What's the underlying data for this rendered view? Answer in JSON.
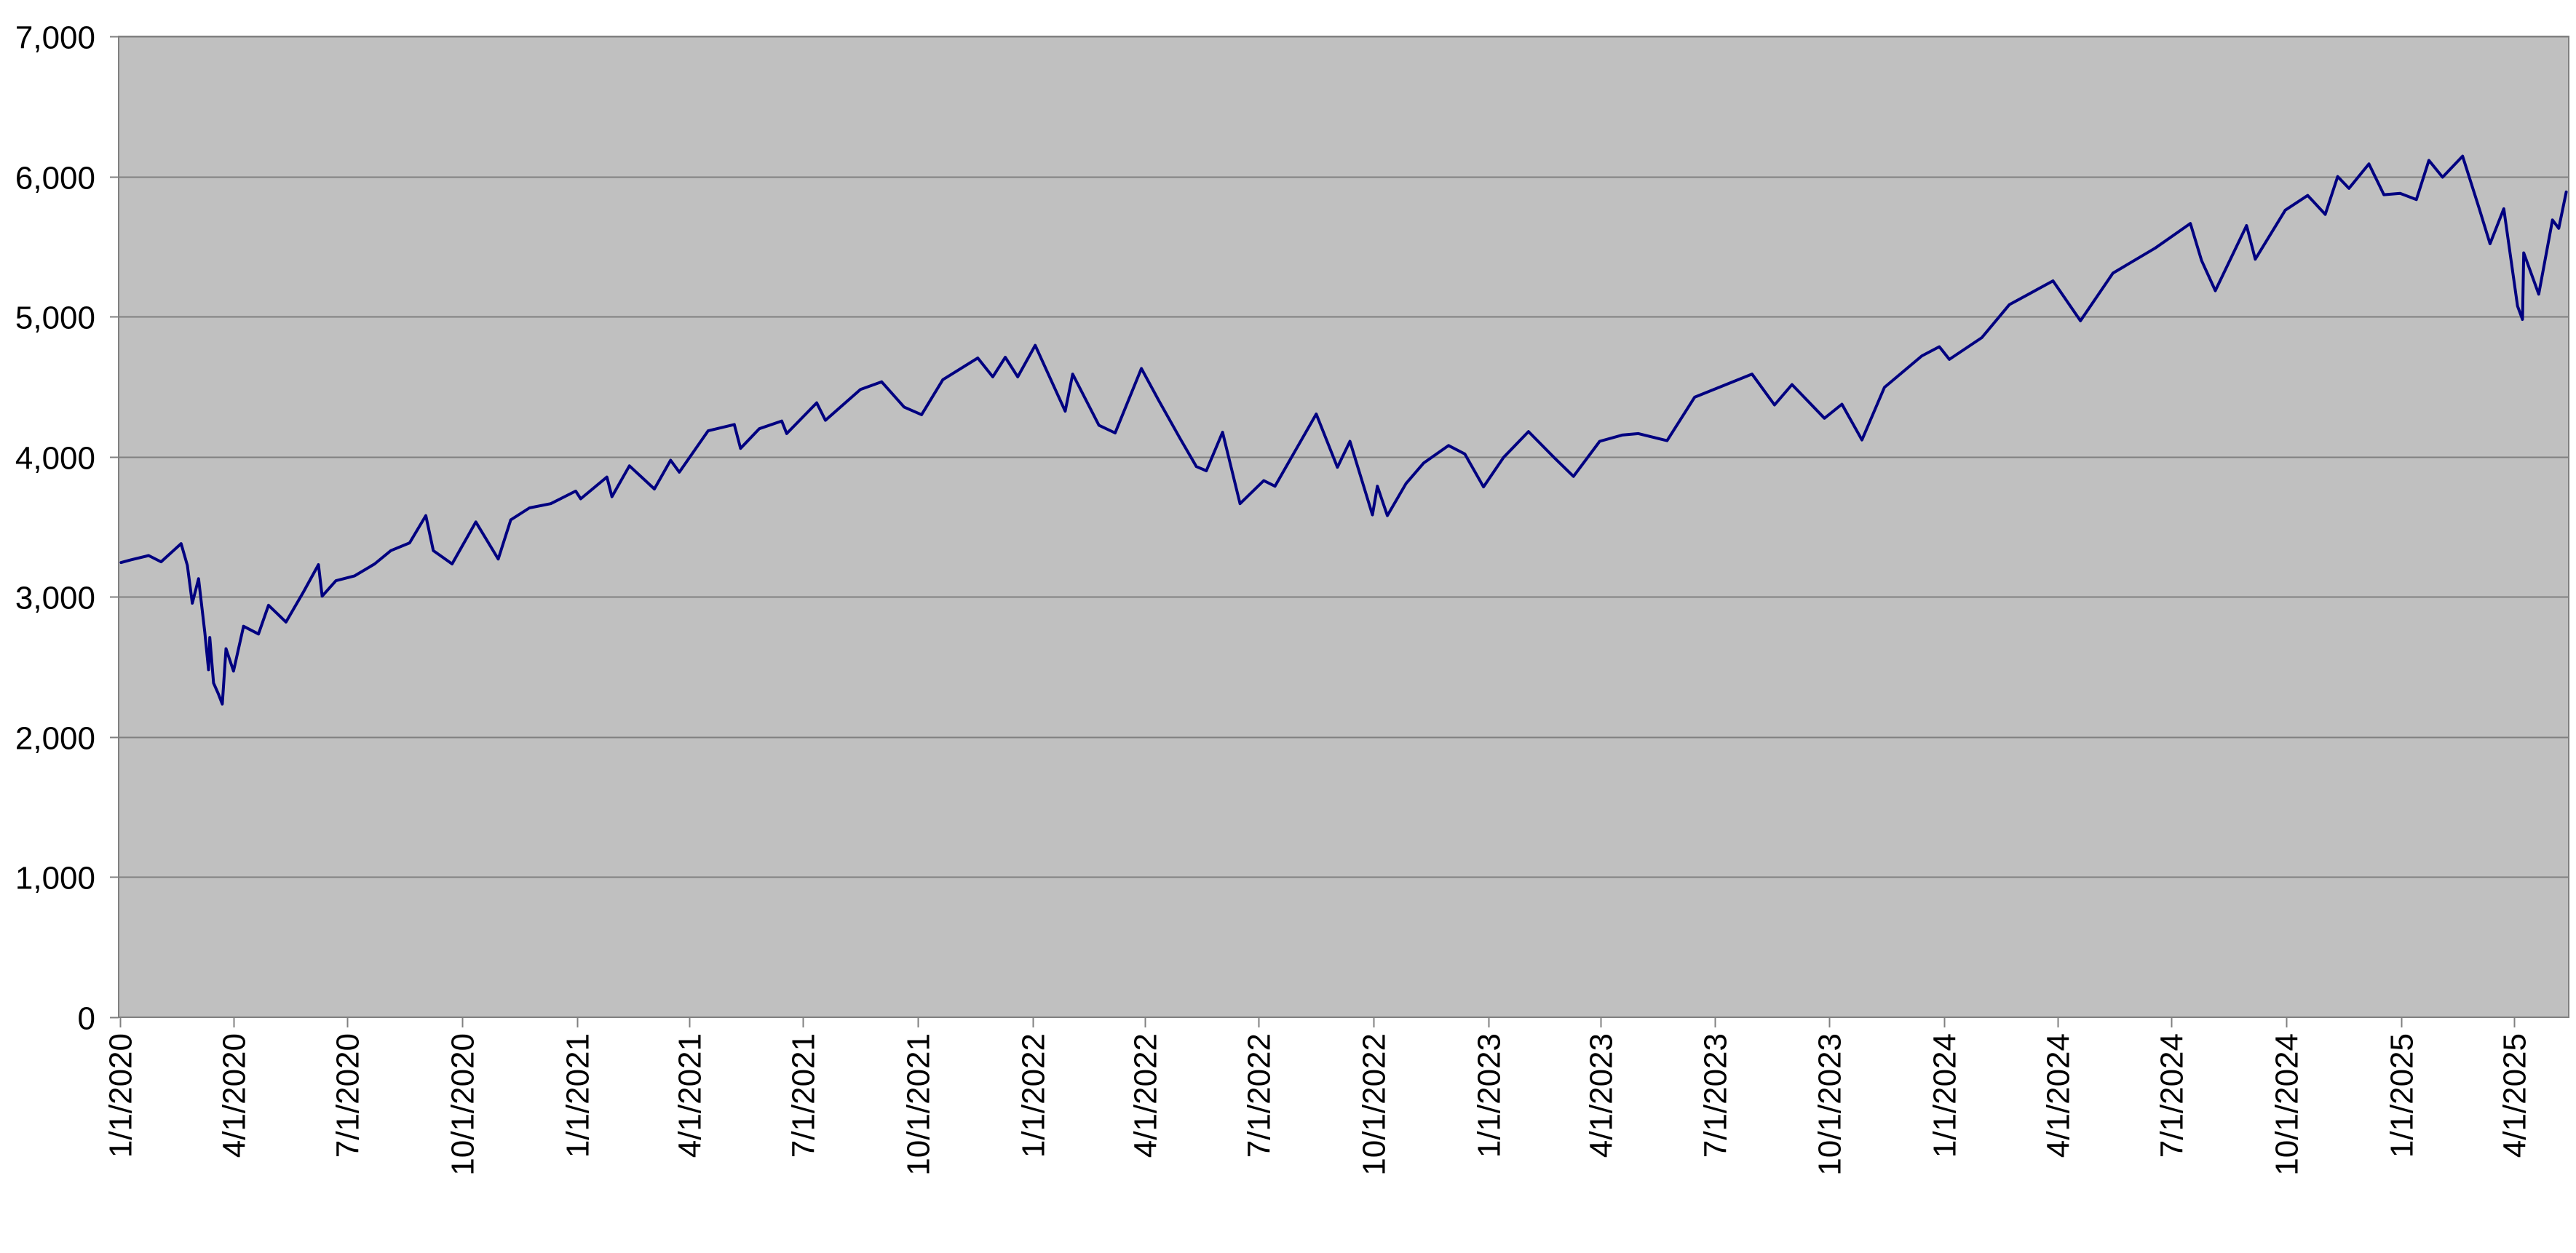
{
  "chart_data": {
    "type": "line",
    "title": "",
    "xlabel": "",
    "ylabel": "",
    "x_axis": {
      "start": "2019-12-31",
      "end": "2025-05-15",
      "tick_dates": [
        "2020-01-01",
        "2020-04-01",
        "2020-07-01",
        "2020-10-01",
        "2021-01-01",
        "2021-04-01",
        "2021-07-01",
        "2021-10-01",
        "2022-01-01",
        "2022-04-01",
        "2022-07-01",
        "2022-10-01",
        "2023-01-01",
        "2023-04-01",
        "2023-07-01",
        "2023-10-01",
        "2024-01-01",
        "2024-04-01",
        "2024-07-01",
        "2024-10-01",
        "2025-01-01",
        "2025-04-01"
      ],
      "tick_labels": [
        "1/1/2020",
        "4/1/2020",
        "7/1/2020",
        "10/1/2020",
        "1/1/2021",
        "4/1/2021",
        "7/1/2021",
        "10/1/2021",
        "1/1/2022",
        "4/1/2022",
        "7/1/2022",
        "10/1/2022",
        "1/1/2023",
        "4/1/2023",
        "7/1/2023",
        "10/1/2023",
        "1/1/2024",
        "4/1/2024",
        "7/1/2024",
        "10/1/2024",
        "1/1/2025",
        "4/1/2025"
      ]
    },
    "y_axis": {
      "ylim": [
        0,
        7000
      ],
      "ticks": [
        0,
        1000,
        2000,
        3000,
        4000,
        5000,
        6000,
        7000
      ],
      "tick_labels": [
        "0",
        "1,000",
        "2,000",
        "3,000",
        "4,000",
        "5,000",
        "6,000",
        "7,000"
      ]
    },
    "grid": {
      "horizontal": true,
      "vertical": false
    },
    "legend": "none",
    "colors": {
      "plot_background": "#c0c0c0",
      "line": "#000080",
      "gridline": "#808080",
      "axis": "#808080"
    },
    "series": [
      {
        "points": [
          [
            "2020-01-02",
            3245
          ],
          [
            "2020-01-10",
            3265
          ],
          [
            "2020-01-24",
            3295
          ],
          [
            "2020-02-03",
            3250
          ],
          [
            "2020-02-19",
            3380
          ],
          [
            "2020-02-24",
            3225
          ],
          [
            "2020-02-28",
            2955
          ],
          [
            "2020-03-04",
            3130
          ],
          [
            "2020-03-09",
            2745
          ],
          [
            "2020-03-12",
            2480
          ],
          [
            "2020-03-13",
            2710
          ],
          [
            "2020-03-16",
            2385
          ],
          [
            "2020-03-20",
            2305
          ],
          [
            "2020-03-23",
            2235
          ],
          [
            "2020-03-26",
            2630
          ],
          [
            "2020-04-01",
            2470
          ],
          [
            "2020-04-09",
            2790
          ],
          [
            "2020-04-21",
            2735
          ],
          [
            "2020-04-29",
            2940
          ],
          [
            "2020-05-13",
            2820
          ],
          [
            "2020-05-27",
            3035
          ],
          [
            "2020-06-08",
            3230
          ],
          [
            "2020-06-11",
            3005
          ],
          [
            "2020-06-22",
            3115
          ],
          [
            "2020-07-07",
            3150
          ],
          [
            "2020-07-23",
            3235
          ],
          [
            "2020-08-05",
            3330
          ],
          [
            "2020-08-20",
            3385
          ],
          [
            "2020-09-02",
            3580
          ],
          [
            "2020-09-08",
            3330
          ],
          [
            "2020-09-23",
            3235
          ],
          [
            "2020-10-12",
            3535
          ],
          [
            "2020-10-30",
            3270
          ],
          [
            "2020-11-09",
            3550
          ],
          [
            "2020-11-24",
            3635
          ],
          [
            "2020-12-11",
            3665
          ],
          [
            "2020-12-31",
            3755
          ],
          [
            "2021-01-04",
            3700
          ],
          [
            "2021-01-25",
            3855
          ],
          [
            "2021-01-29",
            3715
          ],
          [
            "2021-02-12",
            3935
          ],
          [
            "2021-03-04",
            3770
          ],
          [
            "2021-03-17",
            3975
          ],
          [
            "2021-03-24",
            3890
          ],
          [
            "2021-04-16",
            4185
          ],
          [
            "2021-05-07",
            4230
          ],
          [
            "2021-05-12",
            4060
          ],
          [
            "2021-05-27",
            4200
          ],
          [
            "2021-06-14",
            4255
          ],
          [
            "2021-06-18",
            4165
          ],
          [
            "2021-07-12",
            4385
          ],
          [
            "2021-07-19",
            4260
          ],
          [
            "2021-08-16",
            4480
          ],
          [
            "2021-09-02",
            4535
          ],
          [
            "2021-09-20",
            4355
          ],
          [
            "2021-10-04",
            4300
          ],
          [
            "2021-10-21",
            4550
          ],
          [
            "2021-11-18",
            4705
          ],
          [
            "2021-11-30",
            4570
          ],
          [
            "2021-12-10",
            4710
          ],
          [
            "2021-12-20",
            4570
          ],
          [
            "2022-01-03",
            4795
          ],
          [
            "2022-01-27",
            4325
          ],
          [
            "2022-02-02",
            4590
          ],
          [
            "2022-02-23",
            4225
          ],
          [
            "2022-03-08",
            4170
          ],
          [
            "2022-03-29",
            4630
          ],
          [
            "2022-04-12",
            4400
          ],
          [
            "2022-04-29",
            4130
          ],
          [
            "2022-05-12",
            3930
          ],
          [
            "2022-05-20",
            3900
          ],
          [
            "2022-06-02",
            4175
          ],
          [
            "2022-06-16",
            3665
          ],
          [
            "2022-07-05",
            3830
          ],
          [
            "2022-07-14",
            3790
          ],
          [
            "2022-08-16",
            4305
          ],
          [
            "2022-09-02",
            3925
          ],
          [
            "2022-09-12",
            4110
          ],
          [
            "2022-09-30",
            3585
          ],
          [
            "2022-10-04",
            3790
          ],
          [
            "2022-10-12",
            3580
          ],
          [
            "2022-10-27",
            3810
          ],
          [
            "2022-11-10",
            3955
          ],
          [
            "2022-11-30",
            4080
          ],
          [
            "2022-12-13",
            4020
          ],
          [
            "2022-12-28",
            3785
          ],
          [
            "2023-01-13",
            3995
          ],
          [
            "2023-02-02",
            4180
          ],
          [
            "2023-02-23",
            3990
          ],
          [
            "2023-03-10",
            3860
          ],
          [
            "2023-03-31",
            4110
          ],
          [
            "2023-04-18",
            4155
          ],
          [
            "2023-05-01",
            4165
          ],
          [
            "2023-05-24",
            4115
          ],
          [
            "2023-06-15",
            4425
          ],
          [
            "2023-07-31",
            4590
          ],
          [
            "2023-08-18",
            4370
          ],
          [
            "2023-09-01",
            4515
          ],
          [
            "2023-09-27",
            4275
          ],
          [
            "2023-10-11",
            4375
          ],
          [
            "2023-10-27",
            4120
          ],
          [
            "2023-11-14",
            4495
          ],
          [
            "2023-12-14",
            4720
          ],
          [
            "2023-12-28",
            4785
          ],
          [
            "2024-01-05",
            4695
          ],
          [
            "2024-01-31",
            4850
          ],
          [
            "2024-02-22",
            5085
          ],
          [
            "2024-03-28",
            5255
          ],
          [
            "2024-04-19",
            4970
          ],
          [
            "2024-05-15",
            5310
          ],
          [
            "2024-06-18",
            5490
          ],
          [
            "2024-07-16",
            5665
          ],
          [
            "2024-07-25",
            5400
          ],
          [
            "2024-08-05",
            5185
          ],
          [
            "2024-08-30",
            5650
          ],
          [
            "2024-09-06",
            5410
          ],
          [
            "2024-09-30",
            5760
          ],
          [
            "2024-10-18",
            5865
          ],
          [
            "2024-11-01",
            5730
          ],
          [
            "2024-11-11",
            6000
          ],
          [
            "2024-11-20",
            5915
          ],
          [
            "2024-12-06",
            6090
          ],
          [
            "2024-12-18",
            5870
          ],
          [
            "2024-12-31",
            5880
          ],
          [
            "2025-01-13",
            5835
          ],
          [
            "2025-01-23",
            6115
          ],
          [
            "2025-02-03",
            5995
          ],
          [
            "2025-02-19",
            6145
          ],
          [
            "2025-03-04",
            5780
          ],
          [
            "2025-03-13",
            5520
          ],
          [
            "2025-03-24",
            5770
          ],
          [
            "2025-04-04",
            5075
          ],
          [
            "2025-04-08",
            4980
          ],
          [
            "2025-04-09",
            5455
          ],
          [
            "2025-04-21",
            5160
          ],
          [
            "2025-05-02",
            5690
          ],
          [
            "2025-05-07",
            5630
          ],
          [
            "2025-05-13",
            5890
          ]
        ]
      }
    ]
  }
}
